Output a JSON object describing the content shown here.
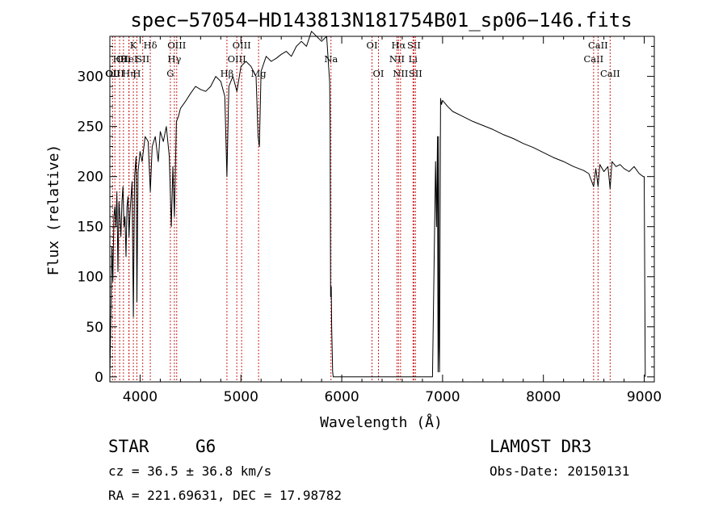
{
  "chart_data": {
    "type": "line",
    "title": "spec−57054−HD143813N181754B01_sp06−146.fits",
    "xlabel": "Wavelength (Å)",
    "ylabel": "Flux (relative)",
    "xlim": [
      3700,
      9100
    ],
    "ylim": [
      -5,
      340
    ],
    "xticks": [
      4000,
      5000,
      6000,
      7000,
      8000,
      9000
    ],
    "yticks": [
      0,
      50,
      100,
      150,
      200,
      250,
      300
    ],
    "series": [
      {
        "name": "spectrum",
        "x": [
          3700,
          3710,
          3720,
          3730,
          3740,
          3750,
          3760,
          3770,
          3780,
          3790,
          3800,
          3810,
          3820,
          3830,
          3840,
          3850,
          3860,
          3870,
          3880,
          3890,
          3900,
          3920,
          3933,
          3945,
          3960,
          3968,
          3980,
          4000,
          4020,
          4050,
          4080,
          4101,
          4120,
          4150,
          4180,
          4200,
          4230,
          4260,
          4290,
          4310,
          4325,
          4340,
          4360,
          4380,
          4400,
          4450,
          4500,
          4550,
          4600,
          4650,
          4700,
          4750,
          4800,
          4840,
          4861,
          4880,
          4920,
          4960,
          5000,
          5050,
          5100,
          5150,
          5170,
          5183,
          5200,
          5250,
          5300,
          5350,
          5400,
          5450,
          5500,
          5550,
          5600,
          5650,
          5700,
          5750,
          5800,
          5850,
          5870,
          5880,
          5885,
          5890,
          5896,
          5900,
          5910,
          5915,
          6000,
          6500,
          6900,
          6930,
          6940,
          6950,
          6955,
          6960,
          6965,
          6970,
          6980,
          6990,
          7000,
          7050,
          7100,
          7200,
          7300,
          7400,
          7500,
          7600,
          7700,
          7800,
          7900,
          8000,
          8100,
          8200,
          8300,
          8400,
          8450,
          8498,
          8520,
          8542,
          8560,
          8600,
          8640,
          8662,
          8680,
          8720,
          8760,
          8800,
          8850,
          8900,
          8950,
          8990,
          9000,
          9010
        ],
        "y": [
          0,
          60,
          130,
          95,
          160,
          170,
          150,
          185,
          105,
          175,
          160,
          140,
          175,
          190,
          150,
          160,
          120,
          170,
          180,
          140,
          165,
          195,
          60,
          200,
          220,
          75,
          205,
          225,
          215,
          240,
          235,
          185,
          230,
          240,
          215,
          245,
          235,
          250,
          220,
          150,
          210,
          160,
          255,
          260,
          268,
          275,
          283,
          290,
          287,
          285,
          290,
          300,
          295,
          280,
          200,
          290,
          300,
          285,
          310,
          315,
          310,
          300,
          240,
          230,
          305,
          320,
          315,
          318,
          322,
          325,
          320,
          330,
          335,
          330,
          345,
          340,
          335,
          340,
          310,
          295,
          250,
          80,
          90,
          50,
          5,
          0,
          0,
          0,
          0,
          215,
          150,
          240,
          5,
          240,
          30,
          5,
          278,
          272,
          276,
          270,
          265,
          260,
          255,
          251,
          247,
          242,
          238,
          233,
          229,
          224,
          219,
          215,
          210,
          206,
          203,
          190,
          208,
          190,
          212,
          205,
          210,
          188,
          215,
          210,
          212,
          208,
          205,
          210,
          203,
          200,
          200,
          0
        ]
      }
    ],
    "spectral_lines": [
      {
        "wl": 3727,
        "labels": [
          "OII"
        ],
        "row": 2
      },
      {
        "wl": 3750,
        "labels": [
          "OIII"
        ],
        "row": 2
      },
      {
        "wl": 3797,
        "labels": [
          "Hθ"
        ],
        "row": 1
      },
      {
        "wl": 3835,
        "labels": [
          "OII"
        ],
        "row": 1
      },
      {
        "wl": 3889,
        "labels": [
          "Hη"
        ],
        "row": 2
      },
      {
        "wl": 3890,
        "labels": [
          "HeI"
        ],
        "row": 1
      },
      {
        "wl": 3933,
        "labels": [
          "K"
        ],
        "row": 0
      },
      {
        "wl": 3968,
        "labels": [
          "H"
        ],
        "row": 2
      },
      {
        "wl": 4026,
        "labels": [
          "SII"
        ],
        "row": 1
      },
      {
        "wl": 4101,
        "labels": [
          "Hδ"
        ],
        "row": 0
      },
      {
        "wl": 4300,
        "labels": [
          "G"
        ],
        "row": 2
      },
      {
        "wl": 4340,
        "labels": [
          "Hγ"
        ],
        "row": 1
      },
      {
        "wl": 4363,
        "labels": [
          "OIII"
        ],
        "row": 0
      },
      {
        "wl": 4861,
        "labels": [
          "Hβ"
        ],
        "row": 2
      },
      {
        "wl": 4959,
        "labels": [
          "OIII"
        ],
        "row": 1
      },
      {
        "wl": 5007,
        "labels": [
          "OIII"
        ],
        "row": 0
      },
      {
        "wl": 5175,
        "labels": [
          "Mg"
        ],
        "row": 2
      },
      {
        "wl": 5893,
        "labels": [
          "Na"
        ],
        "row": 1
      },
      {
        "wl": 6300,
        "labels": [
          "OI"
        ],
        "row": 0
      },
      {
        "wl": 6364,
        "labels": [
          "OI"
        ],
        "row": 2
      },
      {
        "wl": 6548,
        "labels": [
          "NII"
        ],
        "row": 1
      },
      {
        "wl": 6563,
        "labels": [
          "Hα"
        ],
        "row": 0
      },
      {
        "wl": 6583,
        "labels": [
          "NII"
        ],
        "row": 2
      },
      {
        "wl": 6707,
        "labels": [
          "Li"
        ],
        "row": 1
      },
      {
        "wl": 6716,
        "labels": [
          "SII"
        ],
        "row": 0
      },
      {
        "wl": 6731,
        "labels": [
          "SII"
        ],
        "row": 2
      },
      {
        "wl": 8498,
        "labels": [
          "CaII"
        ],
        "row": 1
      },
      {
        "wl": 8542,
        "labels": [
          "CaII"
        ],
        "row": 0
      },
      {
        "wl": 8662,
        "labels": [
          "CaII"
        ],
        "row": 2
      }
    ],
    "line_color": "#cc2222",
    "spectrum_color": "#000000"
  },
  "info": {
    "object_class": "STAR",
    "subclass": "G6",
    "survey": "LAMOST DR3",
    "cz": "cz = 36.5 ± 36.8 km/s",
    "obs_date": "Obs-Date: 20150131",
    "coords": "RA = 221.69631, DEC =  17.98782"
  }
}
